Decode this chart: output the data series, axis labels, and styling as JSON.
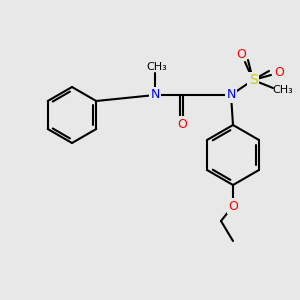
{
  "bg_color": "#e8e8e8",
  "bond_color": "#000000",
  "bond_width": 1.5,
  "atom_colors": {
    "N": "#0000ff",
    "O": "#ff0000",
    "S": "#cccc00",
    "C": "#000000"
  },
  "font_size": 9,
  "figsize": [
    3.0,
    3.0
  ],
  "dpi": 100
}
